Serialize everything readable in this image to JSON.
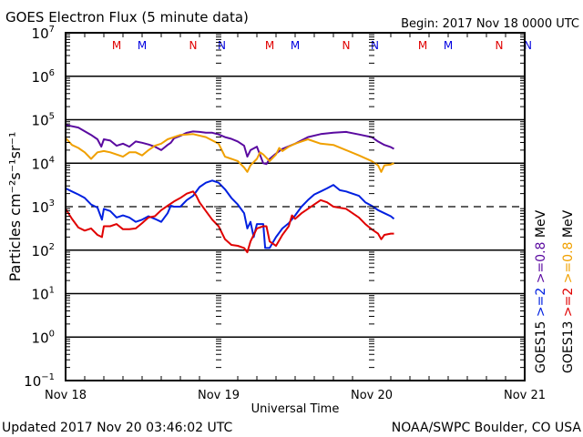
{
  "chart_data": {
    "type": "line",
    "title": "GOES Electron Flux (5 minute data)",
    "begin_label": "Begin: 2017 Nov 18 0000 UTC",
    "xlabel": "Universal Time",
    "ylabel": "Particles cm⁻²s⁻¹sr⁻¹",
    "yscale": "log",
    "ylim_exponents": [
      -1,
      7
    ],
    "y_ticks": [
      {
        "base": "10",
        "exp": "7"
      },
      {
        "base": "10",
        "exp": "6"
      },
      {
        "base": "10",
        "exp": "5"
      },
      {
        "base": "10",
        "exp": "4"
      },
      {
        "base": "10",
        "exp": "3"
      },
      {
        "base": "10",
        "exp": "2"
      },
      {
        "base": "10",
        "exp": "1"
      },
      {
        "base": "10",
        "exp": "0"
      },
      {
        "base": "10",
        "exp": "-1"
      }
    ],
    "x_unit": "hours since 2017 Nov 18 0000 UTC",
    "xlim_hours": [
      0,
      72
    ],
    "x_ticks": [
      {
        "hour": 0,
        "label": "Nov 18"
      },
      {
        "hour": 24,
        "label": "Nov 19"
      },
      {
        "hour": 48,
        "label": "Nov 20"
      },
      {
        "hour": 72,
        "label": "Nov 21"
      }
    ],
    "threshold_line_exponent": 3,
    "grid": "horizontal at each decade",
    "markers_top": [
      {
        "hour": 8,
        "label": "M",
        "color": "#e00000"
      },
      {
        "hour": 12,
        "label": "M",
        "color": "#0000e0"
      },
      {
        "hour": 20,
        "label": "N",
        "color": "#e00000"
      },
      {
        "hour": 24.5,
        "label": "N",
        "color": "#0000e0"
      },
      {
        "hour": 32,
        "label": "M",
        "color": "#e00000"
      },
      {
        "hour": 36,
        "label": "M",
        "color": "#0000e0"
      },
      {
        "hour": 44,
        "label": "N",
        "color": "#e00000"
      },
      {
        "hour": 48.5,
        "label": "N",
        "color": "#0000e0"
      },
      {
        "hour": 56,
        "label": "M",
        "color": "#e00000"
      },
      {
        "hour": 60,
        "label": "M",
        "color": "#0000e0"
      },
      {
        "hour": 68,
        "label": "N",
        "color": "#e00000"
      },
      {
        "hour": 72.5,
        "label": "N",
        "color": "#0000e0"
      }
    ],
    "legend_position": "right",
    "legend": [
      {
        "group": "GOES15",
        "items": [
          {
            "label": ">=2",
            "color": "#0020e0"
          },
          {
            "label": ">=0.8",
            "color": "#5a0aa0"
          },
          {
            "label": "MeV",
            "color": "#000000"
          }
        ]
      },
      {
        "group": "GOES13",
        "items": [
          {
            "label": ">=2",
            "color": "#e00000"
          },
          {
            "label": ">=0.8",
            "color": "#f0a000"
          },
          {
            "label": "MeV",
            "color": "#000000"
          }
        ]
      }
    ],
    "series": [
      {
        "name": "GOES15 >=0.8 MeV",
        "color": "#5a0aa0",
        "x": [
          0,
          2,
          4,
          5,
          5.6,
          6,
          7,
          8,
          9,
          10,
          11,
          12,
          13,
          14,
          15,
          16,
          16.5,
          17,
          18,
          19,
          20,
          21,
          22,
          23,
          24,
          25,
          26,
          27,
          28,
          28.5,
          29,
          30,
          31,
          31.5,
          32,
          33,
          34,
          36,
          38,
          40,
          42,
          44,
          46,
          48,
          49,
          50,
          51,
          51.5
        ],
        "y": [
          4.88,
          4.82,
          4.65,
          4.55,
          4.38,
          4.55,
          4.52,
          4.4,
          4.45,
          4.38,
          4.5,
          4.47,
          4.43,
          4.38,
          4.3,
          4.42,
          4.47,
          4.57,
          4.63,
          4.7,
          4.73,
          4.72,
          4.7,
          4.7,
          4.66,
          4.6,
          4.56,
          4.5,
          4.4,
          4.15,
          4.3,
          4.38,
          4.0,
          3.98,
          4.1,
          4.22,
          4.33,
          4.45,
          4.6,
          4.67,
          4.7,
          4.72,
          4.66,
          4.6,
          4.5,
          4.42,
          4.37,
          4.33
        ]
      },
      {
        "name": "GOES13 >=0.8 MeV",
        "color": "#f0a000",
        "x": [
          0,
          1,
          2,
          3,
          4,
          5,
          6,
          7,
          8,
          9,
          10,
          11,
          12,
          13,
          14,
          15,
          16,
          17,
          18,
          20,
          22,
          24,
          25,
          26,
          27,
          28,
          28.5,
          29,
          30,
          30.5,
          31,
          32,
          33,
          33.5,
          34,
          35,
          36,
          38,
          40,
          42,
          44,
          46,
          48,
          49,
          49.5,
          50,
          51,
          51.5
        ],
        "y": [
          4.58,
          4.42,
          4.35,
          4.25,
          4.1,
          4.25,
          4.28,
          4.25,
          4.2,
          4.15,
          4.25,
          4.25,
          4.18,
          4.3,
          4.4,
          4.45,
          4.55,
          4.6,
          4.65,
          4.67,
          4.6,
          4.45,
          4.15,
          4.1,
          4.05,
          3.9,
          3.8,
          3.95,
          4.1,
          4.25,
          4.2,
          4.05,
          4.2,
          4.35,
          4.28,
          4.38,
          4.45,
          4.55,
          4.45,
          4.42,
          4.3,
          4.18,
          4.05,
          3.95,
          3.8,
          3.95,
          3.97,
          4.0
        ]
      },
      {
        "name": "GOES15 >=2 MeV",
        "color": "#0020e0",
        "x": [
          0,
          1,
          2,
          3,
          4,
          5,
          5.7,
          6,
          7,
          8,
          9,
          10,
          11,
          12,
          13,
          14,
          15,
          16,
          16.5,
          17,
          18,
          19,
          20,
          21,
          22,
          23,
          24,
          25,
          26,
          27,
          28,
          28.5,
          29,
          29.5,
          30,
          31,
          31.3,
          32,
          33,
          34,
          35,
          36,
          37,
          38,
          39,
          40,
          41,
          42,
          43,
          44,
          46,
          47,
          48,
          49,
          50,
          51,
          51.5
        ],
        "y": [
          3.42,
          3.35,
          3.28,
          3.2,
          3.05,
          2.98,
          2.7,
          2.95,
          2.9,
          2.75,
          2.8,
          2.75,
          2.65,
          2.7,
          2.78,
          2.72,
          2.65,
          2.85,
          3.02,
          3.0,
          3.0,
          3.15,
          3.25,
          3.45,
          3.55,
          3.6,
          3.55,
          3.4,
          3.2,
          3.05,
          2.85,
          2.5,
          2.65,
          2.3,
          2.6,
          2.6,
          2.05,
          2.05,
          2.3,
          2.5,
          2.62,
          2.8,
          3.0,
          3.15,
          3.28,
          3.35,
          3.42,
          3.5,
          3.38,
          3.35,
          3.25,
          3.1,
          3.02,
          2.92,
          2.85,
          2.78,
          2.72
        ]
      },
      {
        "name": "GOES13 >=2 MeV",
        "color": "#e00000",
        "x": [
          0,
          1,
          2,
          3,
          4,
          5,
          5.7,
          6,
          7,
          8,
          9,
          10,
          11,
          12,
          13,
          14,
          15,
          16,
          17,
          18,
          19,
          20,
          20.5,
          21,
          22,
          23,
          24,
          25,
          26,
          27,
          28,
          28.5,
          29,
          30,
          31,
          31.5,
          32,
          33,
          34,
          35,
          35.5,
          36,
          37,
          38,
          39,
          40,
          41,
          42,
          44,
          46,
          47,
          48,
          49,
          49.5,
          50,
          51,
          51.5
        ],
        "y": [
          2.95,
          2.72,
          2.52,
          2.45,
          2.5,
          2.35,
          2.3,
          2.55,
          2.55,
          2.6,
          2.48,
          2.48,
          2.5,
          2.62,
          2.75,
          2.78,
          2.92,
          3.02,
          3.12,
          3.2,
          3.3,
          3.35,
          3.25,
          3.1,
          2.9,
          2.7,
          2.55,
          2.25,
          2.12,
          2.1,
          2.05,
          1.95,
          2.2,
          2.5,
          2.55,
          2.55,
          2.2,
          2.1,
          2.35,
          2.55,
          2.8,
          2.72,
          2.85,
          2.95,
          3.05,
          3.15,
          3.1,
          3.0,
          2.95,
          2.75,
          2.6,
          2.48,
          2.38,
          2.25,
          2.35,
          2.38,
          2.38
        ]
      }
    ]
  },
  "footer": {
    "updated": "Updated 2017 Nov 20 03:46:02 UTC",
    "credit": "NOAA/SWPC Boulder, CO USA"
  }
}
